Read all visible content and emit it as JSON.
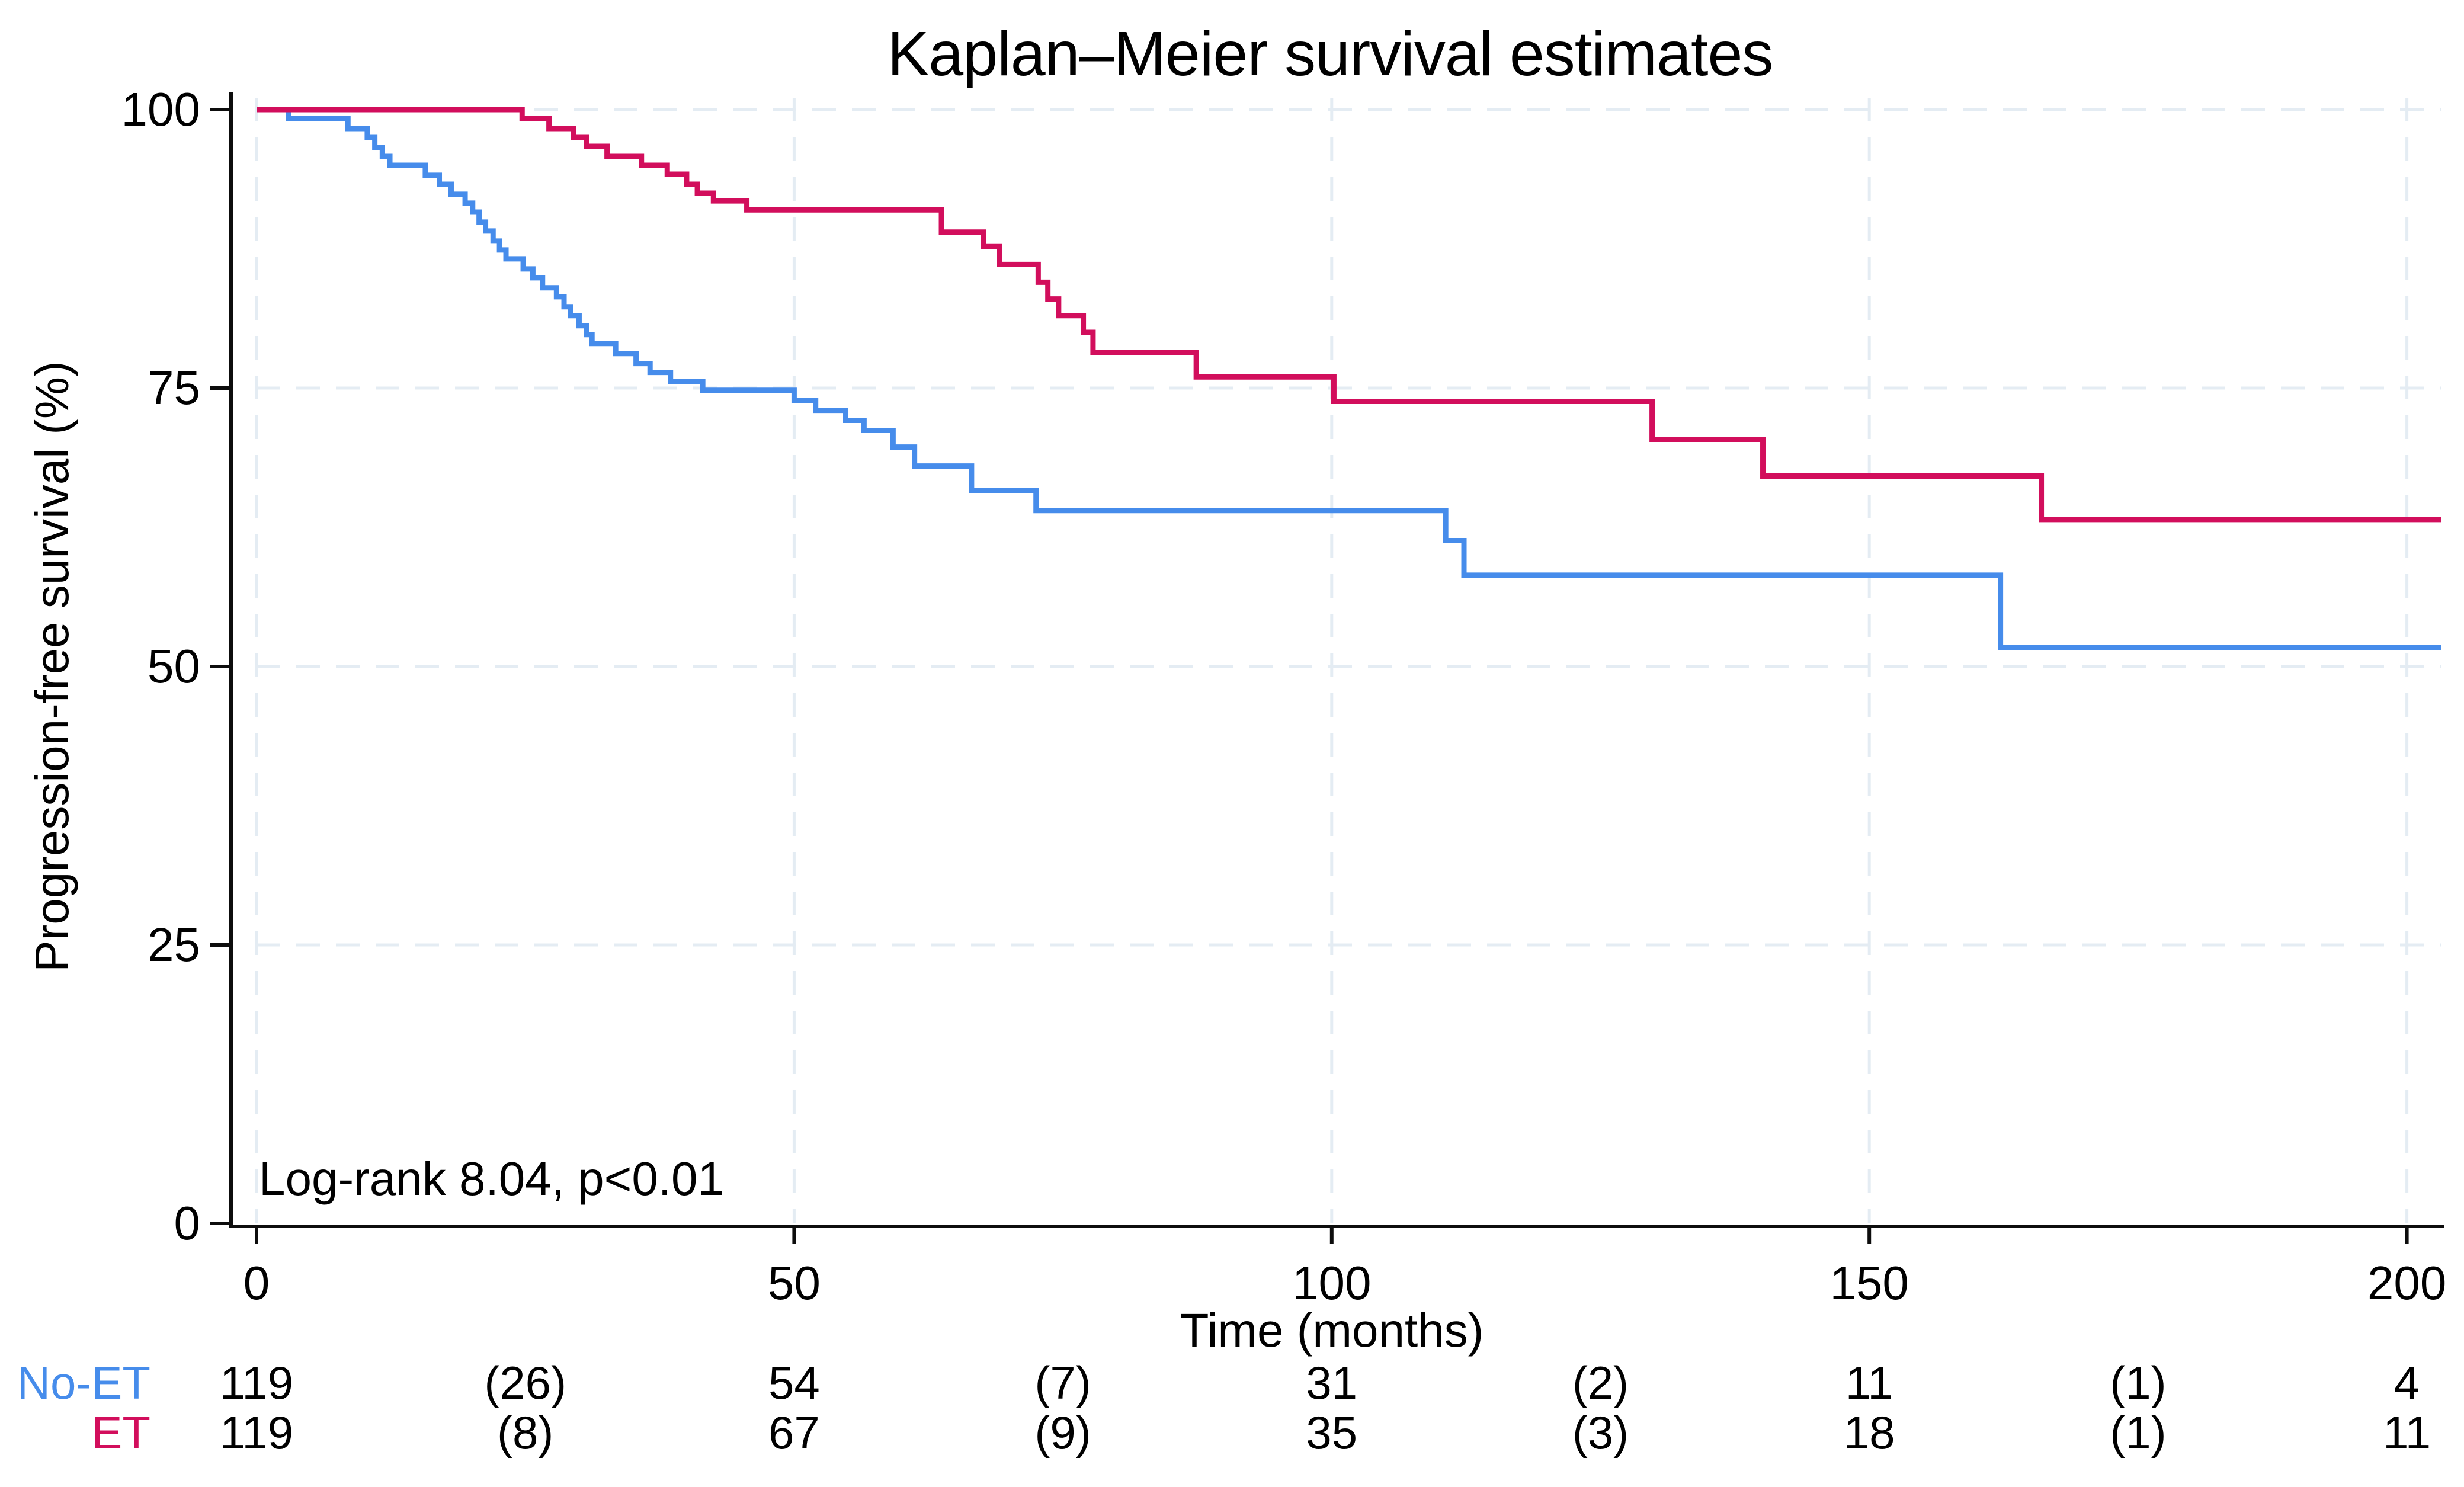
{
  "title": "Kaplan–Meier survival estimates",
  "y_axis": {
    "label": "Progression-free survival (%)",
    "ticks": [
      0,
      25,
      50,
      75,
      100
    ]
  },
  "x_axis": {
    "label": "Time (months)",
    "ticks": [
      0,
      50,
      100,
      150,
      200
    ]
  },
  "annotation": "Log-rank  8.04, p<0.01",
  "colors": {
    "no_et": "#468ceb",
    "et": "#d20e5c",
    "grid": "#e4ecf3",
    "axis": "#0d0d0d",
    "text": "#000000",
    "background": "#ffffff"
  },
  "chart_data": {
    "type": "line",
    "subtype": "kaplan-meier-step",
    "title": "Kaplan–Meier survival estimates",
    "xlabel": "Time (months)",
    "ylabel": "Progression-free survival (%)",
    "xlim": [
      0,
      200
    ],
    "ylim": [
      0,
      100
    ],
    "grid": "dashed-both-axes",
    "legend_position": "risk-table-left",
    "annotation": "Log-rank  8.04, p<0.01",
    "series": [
      {
        "name": "No-ET",
        "color": "#468ceb",
        "points": [
          [
            0,
            100
          ],
          [
            3,
            99.2
          ],
          [
            8.5,
            98.3
          ],
          [
            10.3,
            97.5
          ],
          [
            11,
            96.6
          ],
          [
            11.7,
            95.8
          ],
          [
            12.4,
            95
          ],
          [
            15.7,
            94.1
          ],
          [
            17,
            93.3
          ],
          [
            18.1,
            92.4
          ],
          [
            19.4,
            91.6
          ],
          [
            20.1,
            90.8
          ],
          [
            20.7,
            89.9
          ],
          [
            21.3,
            89.1
          ],
          [
            22,
            88.2
          ],
          [
            22.6,
            87.4
          ],
          [
            23.2,
            86.6
          ],
          [
            24.8,
            85.7
          ],
          [
            25.7,
            84.9
          ],
          [
            26.6,
            84
          ],
          [
            27.9,
            83.2
          ],
          [
            28.6,
            82.3
          ],
          [
            29.2,
            81.5
          ],
          [
            30,
            80.6
          ],
          [
            30.7,
            79.8
          ],
          [
            31.2,
            79
          ],
          [
            33.4,
            78.1
          ],
          [
            35.3,
            77.2
          ],
          [
            36.6,
            76.4
          ],
          [
            38.5,
            75.6
          ],
          [
            41.5,
            74.8
          ],
          [
            50,
            73.9
          ],
          [
            52,
            73
          ],
          [
            54.8,
            72.1
          ],
          [
            56.5,
            71.2
          ],
          [
            59.2,
            69.7
          ],
          [
            61.2,
            68
          ],
          [
            66.5,
            65.8
          ],
          [
            72.5,
            64
          ],
          [
            110.6,
            61.3
          ],
          [
            112.3,
            58.2
          ],
          [
            162.2,
            51.7
          ]
        ]
      },
      {
        "name": "ET",
        "color": "#d20e5c",
        "points": [
          [
            0,
            100
          ],
          [
            24.7,
            99.2
          ],
          [
            27.2,
            98.3
          ],
          [
            29.5,
            97.5
          ],
          [
            30.7,
            96.7
          ],
          [
            32.6,
            95.8
          ],
          [
            35.8,
            95
          ],
          [
            38.2,
            94.2
          ],
          [
            40,
            93.3
          ],
          [
            41,
            92.5
          ],
          [
            42.5,
            91.8
          ],
          [
            45.6,
            91
          ],
          [
            63.7,
            89
          ],
          [
            67.6,
            87.7
          ],
          [
            69.1,
            86.1
          ],
          [
            72.7,
            84.5
          ],
          [
            73.6,
            83
          ],
          [
            74.6,
            81.5
          ],
          [
            76.9,
            80
          ],
          [
            77.8,
            78.2
          ],
          [
            87.4,
            76
          ],
          [
            100.2,
            73.8
          ],
          [
            129.8,
            70.4
          ],
          [
            140.1,
            67.1
          ],
          [
            166,
            63.2
          ]
        ]
      }
    ]
  },
  "risk_table": {
    "times": [
      0,
      25,
      50,
      75,
      100,
      125,
      150,
      175,
      200
    ],
    "rows": [
      {
        "label": "No-ET",
        "color": "#468ceb",
        "values": [
          "119",
          "(26)",
          "54",
          "(7)",
          "31",
          "(2)",
          "11",
          "(1)",
          "4"
        ]
      },
      {
        "label": "ET",
        "color": "#d20e5c",
        "values": [
          "119",
          "(8)",
          "67",
          "(9)",
          "35",
          "(3)",
          "18",
          "(1)",
          "11"
        ]
      }
    ]
  }
}
